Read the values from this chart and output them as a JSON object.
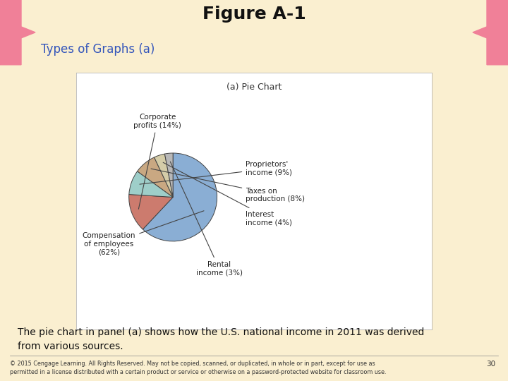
{
  "title_main": "Figure A-1",
  "title_sub": "Types of Graphs (a)",
  "pie_title": "(a) Pie Chart",
  "slices": [
    62,
    14,
    9,
    8,
    4,
    3
  ],
  "colors": [
    "#8aaed4",
    "#cc7b6e",
    "#9ecec9",
    "#c9a882",
    "#d4cca8",
    "#b8b8b8"
  ],
  "bg_color": "#faefd0",
  "header_bg": "#ffffff",
  "pink_color": "#f08098",
  "body_text": "The pie chart in panel (a) shows how the U.S. national income in 2011 was derived\nfrom various sources.",
  "footer_text": "© 2015 Cengage Learning. All Rights Reserved. May not be copied, scanned, or duplicated, in whole or in part, except for use as\npermitted in a license distributed with a certain product or service or otherwise on a password-protected website for classroom use.",
  "page_num": "30"
}
